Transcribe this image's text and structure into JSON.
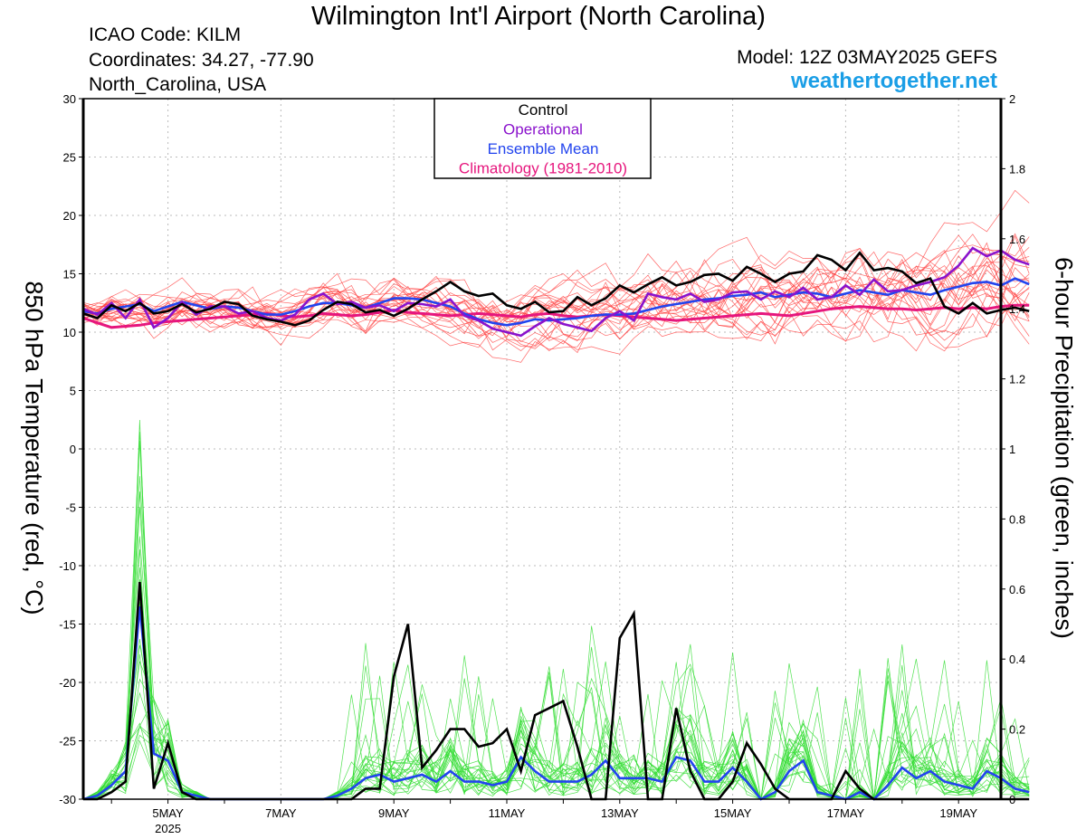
{
  "header": {
    "title": "Wilmington Int'l Airport (North Carolina)",
    "icao": "ICAO Code: KILM",
    "coordinates": "Coordinates: 34.27, -77.90",
    "location": "North_Carolina, USA",
    "model": "Model: 12Z 03MAY2025 GEFS",
    "site": "weathertogether.net"
  },
  "chart_data": {
    "type": "line",
    "ylabel": "850 hPa Temperature (red, °C)",
    "y2label": "6-hour Precipitation (green, inches)",
    "ylim": [
      -30,
      30
    ],
    "y_ticks": [
      30,
      25,
      20,
      15,
      10,
      5,
      0,
      -5,
      -10,
      -15,
      -20,
      -25,
      -30
    ],
    "y2lim": [
      0,
      2
    ],
    "y2_ticks": [
      "2",
      "1.8",
      "1.6",
      "1.4",
      "1.2",
      "1",
      "0.8",
      "0.6",
      "0.4",
      "0.2",
      "0"
    ],
    "x_start": "03MAY2025 12Z",
    "x_end": "19MAY2025 18Z",
    "x_step_hours": 6,
    "x_ticks": [
      {
        "label": "5MAY",
        "sub": "2025",
        "day": 5
      },
      {
        "label": "7MAY",
        "day": 7
      },
      {
        "label": "9MAY",
        "day": 9
      },
      {
        "label": "11MAY",
        "day": 11
      },
      {
        "label": "13MAY",
        "day": 13
      },
      {
        "label": "15MAY",
        "day": 15
      },
      {
        "label": "17MAY",
        "day": 17
      },
      {
        "label": "19MAY",
        "day": 19
      }
    ],
    "grid": true,
    "legend_position": "top-center",
    "legend": [
      {
        "label": "Control",
        "color": "#000000"
      },
      {
        "label": "Operational",
        "color": "#8a12cc"
      },
      {
        "label": "Ensemble Mean",
        "color": "#2244ee"
      },
      {
        "label": "Climatology (1981-2010)",
        "color": "#e6167d"
      }
    ],
    "colors": {
      "control": "#000000",
      "operational": "#8a12cc",
      "mean": "#2244ee",
      "climatology": "#e6167d",
      "members_temp": "#ff4040",
      "members_precip": "#33dd33"
    },
    "temperature": {
      "control": [
        11.6,
        11.2,
        12.3,
        11.8,
        12.5,
        11.6,
        11.8,
        12.4,
        11.7,
        12.0,
        12.6,
        12.4,
        11.4,
        11.1,
        10.9,
        10.6,
        11.0,
        11.9,
        12.6,
        12.4,
        11.7,
        11.9,
        11.4,
        12.0,
        12.8,
        13.5,
        14.3,
        13.5,
        13.1,
        13.3,
        12.3,
        12.0,
        12.6,
        11.7,
        11.8,
        13.0,
        12.3,
        12.9,
        14.0,
        13.4,
        14.1,
        14.7,
        14.0,
        14.3,
        14.9,
        15.0,
        14.4,
        15.6,
        15.0,
        14.3,
        15.0,
        15.2,
        16.6,
        16.2,
        15.3,
        16.8,
        15.3,
        15.5,
        15.2,
        14.2,
        14.6,
        12.2,
        11.6,
        12.5,
        11.6,
        11.9,
        12.1,
        11.8
      ],
      "operational": [
        12.0,
        11.5,
        12.5,
        11.2,
        12.8,
        10.4,
        11.2,
        12.6,
        11.5,
        12.2,
        12.2,
        11.6,
        11.8,
        11.2,
        11.0,
        11.5,
        12.8,
        13.3,
        12.4,
        12.6,
        12.1,
        12.3,
        11.8,
        12.5,
        12.4,
        12.2,
        12.8,
        11.4,
        11.0,
        10.3,
        10.0,
        9.7,
        10.5,
        11.2,
        10.7,
        10.4,
        10.1,
        11.2,
        11.8,
        11.0,
        13.3,
        13.0,
        12.8,
        13.3,
        12.6,
        12.8,
        13.4,
        13.5,
        12.8,
        13.5,
        13.0,
        13.8,
        12.8,
        13.0,
        14.0,
        13.2,
        14.5,
        13.5,
        13.6,
        14.0,
        14.3,
        14.7,
        15.7,
        17.2,
        16.5,
        17.0,
        16.2,
        15.8
      ],
      "mean": [
        11.8,
        11.6,
        12.0,
        12.2,
        12.4,
        11.8,
        12.2,
        12.6,
        12.3,
        12.0,
        12.2,
        12.1,
        11.8,
        11.5,
        11.5,
        11.8,
        12.2,
        12.5,
        12.5,
        12.3,
        12.1,
        12.5,
        12.9,
        12.9,
        12.8,
        12.5,
        12.2,
        11.6,
        11.1,
        10.8,
        10.6,
        10.8,
        11.1,
        11.0,
        11.1,
        11.2,
        11.4,
        11.5,
        11.5,
        11.6,
        11.9,
        12.2,
        12.4,
        12.6,
        12.8,
        12.9,
        13.1,
        13.2,
        13.4,
        13.0,
        13.2,
        13.4,
        13.3,
        13.0,
        13.3,
        13.6,
        13.4,
        13.2,
        13.6,
        13.4,
        13.2,
        13.6,
        13.9,
        14.2,
        14.3,
        14.0,
        14.6,
        14.1
      ],
      "climatology": [
        11.2,
        10.8,
        10.4,
        10.5,
        10.6,
        10.8,
        10.9,
        11.0,
        11.1,
        11.2,
        11.3,
        11.4,
        11.5,
        11.6,
        11.4,
        11.3,
        11.4,
        11.6,
        11.5,
        11.4,
        11.5,
        11.7,
        11.9,
        11.7,
        11.6,
        11.5,
        11.4,
        11.5,
        11.6,
        11.5,
        11.4,
        11.3,
        11.5,
        11.6,
        11.4,
        11.3,
        11.4,
        11.5,
        11.4,
        11.3,
        11.2,
        11.1,
        11.0,
        11.1,
        11.2,
        11.3,
        11.4,
        11.5,
        11.6,
        11.5,
        11.4,
        11.6,
        11.8,
        12.0,
        12.1,
        12.2,
        12.1,
        12.0,
        12.0,
        11.9,
        12.0,
        12.1,
        12.0,
        12.1,
        12.0,
        12.2,
        12.3,
        12.3
      ]
    },
    "precipitation": {
      "control": [
        0.0,
        0.0,
        0.02,
        0.05,
        0.62,
        0.03,
        0.16,
        0.02,
        0.0,
        0.0,
        0.0,
        0.0,
        0.0,
        0.0,
        0.0,
        0.0,
        0.0,
        0.0,
        0.0,
        0.0,
        0.03,
        0.03,
        0.35,
        0.5,
        0.09,
        0.14,
        0.2,
        0.2,
        0.15,
        0.16,
        0.2,
        0.08,
        0.24,
        0.26,
        0.28,
        0.15,
        0.0,
        0.0,
        0.46,
        0.53,
        0.0,
        0.0,
        0.26,
        0.08,
        0.0,
        0.0,
        0.05,
        0.16,
        0.1,
        0.03,
        0.0,
        0.0,
        0.0,
        0.0,
        0.08,
        0.03,
        0.0,
        0.0,
        0.0,
        0.0,
        0.0,
        0.0,
        0.0,
        0.0,
        0.0,
        0.0,
        0.0,
        0.0
      ],
      "mean": [
        0.0,
        0.01,
        0.04,
        0.08,
        0.55,
        0.13,
        0.11,
        0.02,
        0.01,
        0.0,
        0.0,
        0.0,
        0.0,
        0.0,
        0.0,
        0.0,
        0.0,
        0.0,
        0.01,
        0.03,
        0.06,
        0.07,
        0.05,
        0.06,
        0.07,
        0.05,
        0.08,
        0.05,
        0.05,
        0.04,
        0.05,
        0.12,
        0.08,
        0.05,
        0.05,
        0.05,
        0.07,
        0.11,
        0.06,
        0.06,
        0.06,
        0.05,
        0.12,
        0.11,
        0.05,
        0.05,
        0.09,
        0.05,
        0.0,
        0.02,
        0.08,
        0.11,
        0.02,
        0.01,
        0.0,
        0.02,
        0.0,
        0.04,
        0.09,
        0.06,
        0.08,
        0.05,
        0.04,
        0.03,
        0.08,
        0.06,
        0.03,
        0.02
      ]
    }
  }
}
